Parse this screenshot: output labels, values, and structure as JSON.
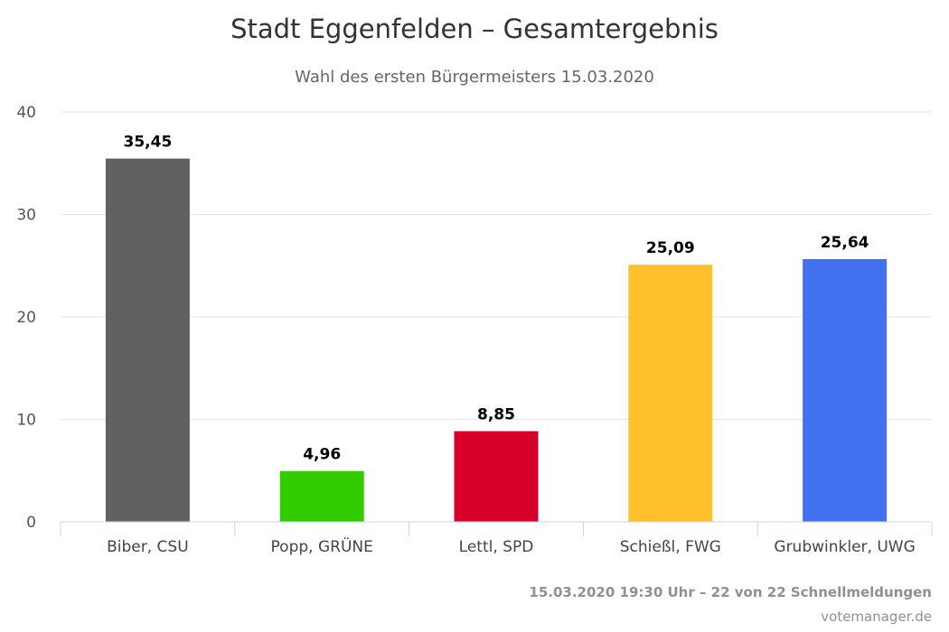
{
  "chart_data": {
    "type": "bar",
    "title": "Stadt Eggenfelden – Gesamtergebnis",
    "subtitle": "Wahl des ersten Bürgermeisters 15.03.2020",
    "categories": [
      "Biber, CSU",
      "Popp, GRÜNE",
      "Lettl, SPD",
      "Schießl, FWG",
      "Grubwinkler, UWG"
    ],
    "values": [
      35.45,
      4.96,
      8.85,
      25.09,
      25.64
    ],
    "data_labels": [
      "35,45",
      "4,96",
      "8,85",
      "25,09",
      "25,64"
    ],
    "colors": [
      "#616161",
      "#33cc00",
      "#d6002a",
      "#fec02b",
      "#4370ee"
    ],
    "ylim": [
      0,
      40
    ],
    "yticks": [
      0,
      10,
      20,
      30,
      40
    ],
    "ytick_labels": [
      "0",
      "10",
      "20",
      "30",
      "40"
    ],
    "xlabel": "",
    "ylabel": "",
    "grid": true
  },
  "credits": {
    "status": "15.03.2020 19:30 Uhr – 22 von 22 Schnellmeldungen",
    "source": "votemanager.de"
  }
}
